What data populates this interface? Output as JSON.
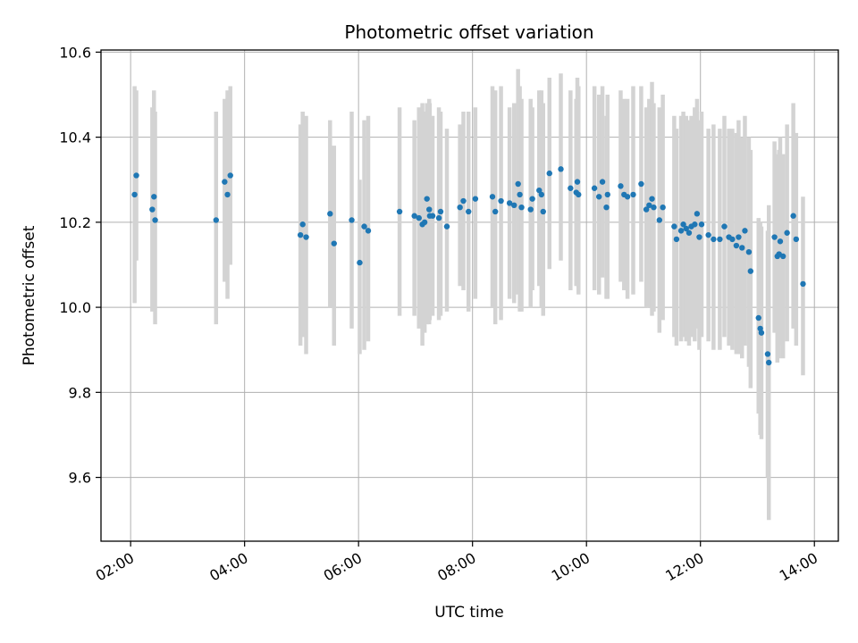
{
  "chart_data": {
    "type": "scatter",
    "title": "Photometric offset variation",
    "xlabel": "UTC time",
    "ylabel": "Photometric offset",
    "x_unit": "hours (UTC)",
    "xlim": [
      1.48,
      14.42
    ],
    "ylim": [
      9.45,
      10.605
    ],
    "grid": true,
    "x_ticks": [
      {
        "value": 2,
        "label": "02:00"
      },
      {
        "value": 4,
        "label": "04:00"
      },
      {
        "value": 6,
        "label": "06:00"
      },
      {
        "value": 8,
        "label": "08:00"
      },
      {
        "value": 10,
        "label": "10:00"
      },
      {
        "value": 12,
        "label": "12:00"
      },
      {
        "value": 14,
        "label": "14:00"
      }
    ],
    "y_ticks": [
      {
        "value": 9.6,
        "label": "9.6"
      },
      {
        "value": 9.8,
        "label": "9.8"
      },
      {
        "value": 10.0,
        "label": "10.0"
      },
      {
        "value": 10.2,
        "label": "10.2"
      },
      {
        "value": 10.4,
        "label": "10.4"
      },
      {
        "value": 10.6,
        "label": "10.6"
      }
    ],
    "colors": {
      "points": "#1f77b4",
      "errorbars": "#d3d3d3",
      "grid": "#b0b0b0"
    },
    "series": [
      {
        "name": "offset",
        "x": [
          2.07,
          2.1,
          2.38,
          2.41,
          2.43,
          3.5,
          3.65,
          3.7,
          3.75,
          4.98,
          5.02,
          5.08,
          5.5,
          5.57,
          5.88,
          6.02,
          6.1,
          6.17,
          6.72,
          6.98,
          7.06,
          7.12,
          7.16,
          7.2,
          7.24,
          7.25,
          7.3,
          7.41,
          7.44,
          7.55,
          7.78,
          7.84,
          7.93,
          8.05,
          8.35,
          8.4,
          8.5,
          8.65,
          8.73,
          8.8,
          8.83,
          8.86,
          9.02,
          9.05,
          9.17,
          9.21,
          9.24,
          9.35,
          9.55,
          9.72,
          9.82,
          9.84,
          9.86,
          10.14,
          10.22,
          10.28,
          10.35,
          10.37,
          10.6,
          10.66,
          10.72,
          10.82,
          10.96,
          11.05,
          11.1,
          11.15,
          11.18,
          11.28,
          11.34,
          11.54,
          11.58,
          11.66,
          11.7,
          11.75,
          11.8,
          11.84,
          11.9,
          11.94,
          11.98,
          12.02,
          12.14,
          12.23,
          12.34,
          12.42,
          12.5,
          12.56,
          12.63,
          12.67,
          12.73,
          12.78,
          12.85,
          12.88,
          13.02,
          13.05,
          13.07,
          13.18,
          13.2,
          13.3,
          13.35,
          13.38,
          13.4,
          13.45,
          13.52,
          13.63,
          13.68,
          13.8
        ],
        "y": [
          10.265,
          10.31,
          10.23,
          10.26,
          10.205,
          10.205,
          10.295,
          10.265,
          10.31,
          10.17,
          10.195,
          10.165,
          10.22,
          10.15,
          10.205,
          10.105,
          10.19,
          10.18,
          10.225,
          10.215,
          10.21,
          10.195,
          10.2,
          10.255,
          10.23,
          10.215,
          10.215,
          10.21,
          10.225,
          10.19,
          10.235,
          10.25,
          10.225,
          10.255,
          10.26,
          10.225,
          10.25,
          10.245,
          10.24,
          10.29,
          10.265,
          10.235,
          10.23,
          10.255,
          10.275,
          10.265,
          10.225,
          10.315,
          10.325,
          10.28,
          10.27,
          10.295,
          10.265,
          10.28,
          10.26,
          10.295,
          10.235,
          10.265,
          10.285,
          10.265,
          10.26,
          10.265,
          10.29,
          10.23,
          10.24,
          10.255,
          10.235,
          10.205,
          10.235,
          10.19,
          10.16,
          10.18,
          10.195,
          10.185,
          10.175,
          10.19,
          10.195,
          10.22,
          10.165,
          10.195,
          10.17,
          10.16,
          10.16,
          10.19,
          10.165,
          10.16,
          10.145,
          10.165,
          10.14,
          10.18,
          10.13,
          10.085,
          9.975,
          9.95,
          9.94,
          9.89,
          9.87,
          10.165,
          10.12,
          10.125,
          10.155,
          10.12,
          10.175,
          10.215,
          10.16,
          10.055
        ],
        "err_low": [
          10.01,
          10.11,
          9.99,
          10.0,
          9.96,
          9.96,
          10.06,
          10.02,
          10.1,
          9.91,
          9.93,
          9.89,
          10.0,
          9.91,
          9.95,
          9.89,
          9.9,
          9.92,
          9.98,
          9.98,
          9.95,
          9.91,
          9.94,
          9.96,
          9.96,
          9.97,
          9.98,
          9.97,
          9.98,
          9.99,
          10.05,
          10.04,
          9.99,
          10.02,
          10.0,
          9.96,
          9.97,
          10.02,
          10.01,
          10.03,
          9.99,
          9.99,
          10.0,
          10.04,
          10.05,
          10.0,
          9.98,
          10.09,
          10.11,
          10.04,
          10.05,
          10.05,
          10.03,
          10.04,
          10.03,
          10.07,
          10.02,
          10.02,
          10.06,
          10.04,
          10.02,
          10.03,
          10.06,
          10.0,
          10.0,
          9.98,
          9.99,
          9.94,
          9.97,
          9.93,
          9.91,
          9.92,
          9.93,
          9.92,
          9.91,
          9.93,
          9.92,
          9.95,
          9.9,
          9.93,
          9.92,
          9.9,
          9.9,
          9.93,
          9.91,
          9.9,
          9.89,
          9.89,
          9.88,
          9.91,
          9.86,
          9.81,
          9.75,
          9.7,
          9.69,
          9.6,
          9.5,
          9.94,
          9.87,
          9.88,
          9.91,
          9.88,
          9.92,
          9.95,
          9.91,
          9.84
        ],
        "err_high": [
          10.52,
          10.51,
          10.47,
          10.51,
          10.46,
          10.46,
          10.49,
          10.51,
          10.52,
          10.43,
          10.46,
          10.45,
          10.44,
          10.38,
          10.46,
          10.3,
          10.44,
          10.45,
          10.47,
          10.44,
          10.47,
          10.48,
          10.46,
          10.48,
          10.49,
          10.48,
          10.45,
          10.47,
          10.46,
          10.42,
          10.43,
          10.46,
          10.46,
          10.47,
          10.52,
          10.51,
          10.52,
          10.47,
          10.48,
          10.56,
          10.52,
          10.49,
          10.49,
          10.47,
          10.51,
          10.51,
          10.48,
          10.54,
          10.55,
          10.51,
          10.49,
          10.54,
          10.52,
          10.52,
          10.5,
          10.52,
          10.45,
          10.5,
          10.51,
          10.49,
          10.49,
          10.52,
          10.52,
          10.47,
          10.49,
          10.53,
          10.48,
          10.47,
          10.5,
          10.45,
          10.42,
          10.45,
          10.46,
          10.45,
          10.44,
          10.45,
          10.47,
          10.49,
          10.44,
          10.46,
          10.42,
          10.43,
          10.42,
          10.45,
          10.42,
          10.42,
          10.41,
          10.44,
          10.4,
          10.45,
          10.4,
          10.37,
          10.21,
          10.2,
          10.19,
          10.18,
          10.24,
          10.39,
          10.36,
          10.37,
          10.4,
          10.36,
          10.43,
          10.48,
          10.41,
          10.26
        ]
      }
    ]
  }
}
